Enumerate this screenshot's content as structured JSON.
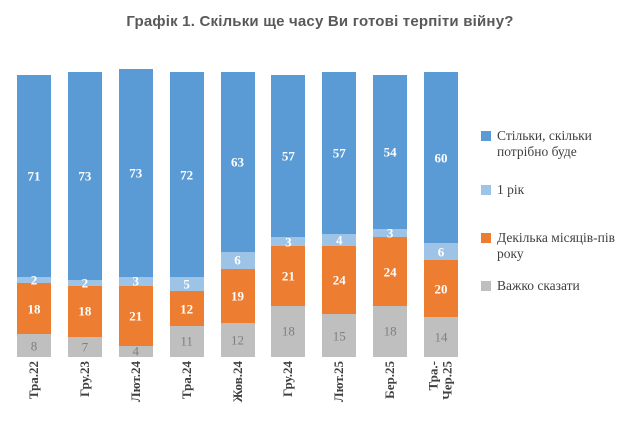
{
  "title": "Графік 1. Скільки ще часу Ви готові терпіти війну?",
  "chart_data": {
    "type": "bar",
    "stacked": true,
    "stack_order": "first series drawn on top of each column",
    "orientation": "vertical",
    "gridlines": false,
    "axis_lines": false,
    "legend_position": "right",
    "title": "Графік 1. Скільки ще часу Ви готові терпіти війну?",
    "categories": [
      "Тра.22",
      "Гру.23",
      "Лют.24",
      "Тра.24",
      "Жов.24",
      "Гру.24",
      "Лют.25",
      "Бер.25",
      "Тра.-\nЧер.25"
    ],
    "series": [
      {
        "name": "Стільки, скільки потрібно буде",
        "color": "#5B9BD5",
        "label_color": "#FFFFFF",
        "label_style": "bold",
        "values": [
          71,
          73,
          73,
          72,
          63,
          57,
          57,
          54,
          60
        ]
      },
      {
        "name": "1 рік",
        "color": "#9DC3E6",
        "label_color": "#FFFFFF",
        "label_style": "bold",
        "values": [
          2,
          2,
          3,
          5,
          6,
          3,
          4,
          3,
          6
        ]
      },
      {
        "name": "Декілька місяців-пів року",
        "color": "#ED7D31",
        "label_color": "#FFFFFF",
        "label_style": "bold",
        "values": [
          18,
          18,
          21,
          12,
          19,
          21,
          24,
          24,
          20
        ]
      },
      {
        "name": "Важко сказати",
        "color": "#BFBFBF",
        "label_color": "#7F7F7F",
        "label_style": "normal",
        "values": [
          8,
          7,
          4,
          11,
          12,
          18,
          15,
          18,
          14
        ]
      }
    ],
    "value_axis": {
      "min": 0,
      "max": 100,
      "implied_unit": "%"
    }
  },
  "colors": {
    "title_text": "#595959",
    "axis_label_text": "#404040",
    "legend_text": "#404040"
  }
}
